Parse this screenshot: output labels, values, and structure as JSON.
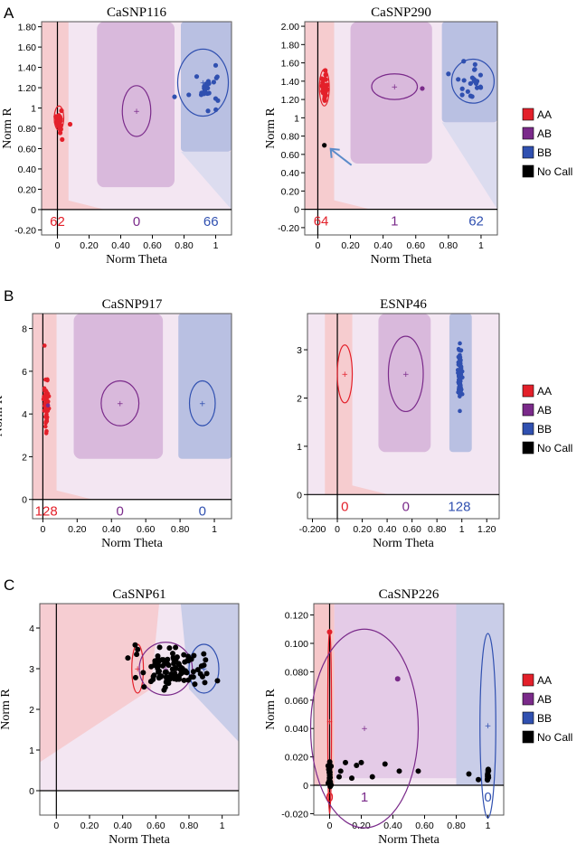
{
  "panel_letters": [
    "A",
    "B",
    "C"
  ],
  "colors": {
    "AA": "#e3202a",
    "AB": "#7a2a8a",
    "BB": "#3050b0",
    "NoCall": "#000000"
  },
  "legend": {
    "entries": [
      "AA",
      "AB",
      "BB",
      "No Call"
    ]
  },
  "chart_data": [
    {
      "type": "scatter",
      "title": "CaSNP116",
      "xlabel": "Norm Theta",
      "ylabel": "Norm R",
      "xlim": [
        -0.1,
        1.1
      ],
      "ylim": [
        -0.25,
        1.85
      ],
      "xticks": [
        0,
        0.2,
        0.4,
        0.6,
        0.8,
        1
      ],
      "xticklabels": [
        "0",
        "0.20",
        "0.40",
        "0.60",
        "0.80",
        "1"
      ],
      "yticks": [
        -0.2,
        0,
        0.2,
        0.4,
        0.6,
        0.8,
        1,
        1.2,
        1.4,
        1.6,
        1.8
      ],
      "yticklabels": [
        "-0.20",
        "0",
        "0.20",
        "0.40",
        "0.60",
        "0.80",
        "1",
        "1.20",
        "1.40",
        "1.60",
        "1.80"
      ],
      "counts": [
        {
          "label": "62",
          "x": 0.0,
          "cls": "AA"
        },
        {
          "label": "0",
          "x": 0.5,
          "cls": "AB"
        },
        {
          "label": "66",
          "x": 0.97,
          "cls": "BB"
        }
      ],
      "ellipses": [
        {
          "cls": "AA",
          "cx": 0.01,
          "cy": 0.9,
          "rx": 0.03,
          "ry": 0.12
        },
        {
          "cls": "AB",
          "cx": 0.5,
          "cy": 0.97,
          "rx": 0.09,
          "ry": 0.25
        },
        {
          "cls": "BB",
          "cx": 0.92,
          "cy": 1.25,
          "rx": 0.16,
          "ry": 0.33
        }
      ],
      "clusters": [
        {
          "cls": "AA",
          "cx": 0.01,
          "cy": 0.88,
          "sx": 0.008,
          "sy": 0.06,
          "n": 22
        },
        {
          "cls": "BB",
          "cx": 0.95,
          "cy": 1.2,
          "sx": 0.035,
          "sy": 0.08,
          "n": 22
        }
      ],
      "points": [
        {
          "cls": "AA",
          "x": 0.08,
          "y": 0.84
        },
        {
          "cls": "AA",
          "x": 0.03,
          "y": 0.69
        },
        {
          "cls": "BB",
          "x": 0.74,
          "y": 1.11
        },
        {
          "cls": "BB",
          "x": 0.83,
          "y": 1.13
        },
        {
          "cls": "BB",
          "x": 0.88,
          "y": 1.31
        },
        {
          "cls": "BB",
          "x": 1.0,
          "y": 1.42
        }
      ]
    },
    {
      "type": "scatter",
      "title": "CaSNP290",
      "xlabel": "Norm Theta",
      "ylabel": "Norm R",
      "xlim": [
        -0.08,
        1.1
      ],
      "ylim": [
        -0.28,
        2.05
      ],
      "xticks": [
        0,
        0.2,
        0.4,
        0.6,
        0.8,
        1
      ],
      "xticklabels": [
        "0",
        "0.20",
        "0.40",
        "0.60",
        "0.80",
        "1"
      ],
      "yticks": [
        -0.2,
        0,
        0.2,
        0.4,
        0.6,
        0.8,
        1,
        1.2,
        1.4,
        1.6,
        1.8,
        2
      ],
      "yticklabels": [
        "-0.20",
        "0",
        "0.20",
        "0.40",
        "0.60",
        "0.80",
        "1",
        "1.20",
        "1.40",
        "1.60",
        "1.80",
        "2.00"
      ],
      "counts": [
        {
          "label": "64",
          "x": 0.02,
          "cls": "AA"
        },
        {
          "label": "1",
          "x": 0.47,
          "cls": "AB"
        },
        {
          "label": "62",
          "x": 0.97,
          "cls": "BB"
        }
      ],
      "ellipses": [
        {
          "cls": "AA",
          "cx": 0.04,
          "cy": 1.33,
          "rx": 0.03,
          "ry": 0.2
        },
        {
          "cls": "AB",
          "cx": 0.47,
          "cy": 1.34,
          "rx": 0.14,
          "ry": 0.14
        },
        {
          "cls": "BB",
          "cx": 0.95,
          "cy": 1.4,
          "rx": 0.13,
          "ry": 0.24
        }
      ],
      "clusters": [
        {
          "cls": "AA",
          "cx": 0.04,
          "cy": 1.33,
          "sx": 0.01,
          "sy": 0.08,
          "n": 30
        },
        {
          "cls": "BB",
          "cx": 0.96,
          "cy": 1.42,
          "sx": 0.035,
          "sy": 0.09,
          "n": 20
        }
      ],
      "points": [
        {
          "cls": "AB",
          "x": 0.64,
          "y": 1.32
        },
        {
          "cls": "BB",
          "x": 0.8,
          "y": 1.48
        },
        {
          "cls": "BB",
          "x": 0.86,
          "y": 1.42
        },
        {
          "cls": "NoCall",
          "x": 0.04,
          "y": 0.7
        }
      ],
      "annotation": {
        "type": "arrow",
        "target": "No Call point"
      }
    },
    {
      "type": "scatter",
      "title": "CaSNP917",
      "xlabel": "Norm Theta",
      "ylabel": "Norm R",
      "xlim": [
        -0.06,
        1.1
      ],
      "ylim": [
        -0.9,
        8.7
      ],
      "xticks": [
        0,
        0.2,
        0.4,
        0.6,
        0.8,
        1
      ],
      "xticklabels": [
        "0",
        "0.20",
        "0.40",
        "0.60",
        "0.80",
        "1"
      ],
      "yticks": [
        0,
        2,
        4,
        6,
        8
      ],
      "yticklabels": [
        "0",
        "2",
        "4",
        "6",
        "8"
      ],
      "counts": [
        {
          "label": "128",
          "x": 0.02,
          "cls": "AA"
        },
        {
          "label": "0",
          "x": 0.45,
          "cls": "AB"
        },
        {
          "label": "0",
          "x": 0.93,
          "cls": "BB"
        }
      ],
      "ellipses": [
        {
          "cls": "AB",
          "cx": 0.45,
          "cy": 4.5,
          "rx": 0.11,
          "ry": 1.05
        },
        {
          "cls": "BB",
          "cx": 0.93,
          "cy": 4.5,
          "rx": 0.075,
          "ry": 1.05
        }
      ],
      "clusters": [
        {
          "cls": "AA",
          "cx": 0.02,
          "cy": 4.55,
          "sx": 0.007,
          "sy": 0.55,
          "n": 60
        }
      ],
      "points": [
        {
          "cls": "AA",
          "x": 0.01,
          "y": 7.2
        },
        {
          "cls": "AA",
          "x": 0.02,
          "y": 3.1
        },
        {
          "cls": "AB",
          "x": 0.03,
          "y": 4.4
        }
      ]
    },
    {
      "type": "scatter",
      "title": "ESNP46",
      "xlabel": "Norm Theta",
      "ylabel": "",
      "xlim": [
        -0.24,
        1.3
      ],
      "ylim": [
        -0.5,
        3.75
      ],
      "xticks": [
        -0.2,
        0,
        0.2,
        0.4,
        0.6,
        0.8,
        1,
        1.2
      ],
      "xticklabels": [
        "-0.200",
        "0",
        "0.20",
        "0.40",
        "0.60",
        "0.80",
        "1",
        "1.20"
      ],
      "yticks": [
        0,
        1,
        2,
        3
      ],
      "yticklabels": [
        "0",
        "1",
        "2",
        "3"
      ],
      "counts": [
        {
          "label": "0",
          "x": 0.06,
          "cls": "AA"
        },
        {
          "label": "0",
          "x": 0.55,
          "cls": "AB"
        },
        {
          "label": "128",
          "x": 0.98,
          "cls": "BB"
        }
      ],
      "ellipses": [
        {
          "cls": "AA",
          "cx": 0.06,
          "cy": 2.5,
          "rx": 0.06,
          "ry": 0.6
        },
        {
          "cls": "AB",
          "cx": 0.55,
          "cy": 2.5,
          "rx": 0.14,
          "ry": 0.78
        }
      ],
      "clusters": [
        {
          "cls": "BB",
          "cx": 0.985,
          "cy": 2.5,
          "sx": 0.008,
          "sy": 0.3,
          "n": 70
        }
      ],
      "points": []
    },
    {
      "type": "scatter",
      "title": "CaSNP61",
      "xlabel": "Norm Theta",
      "ylabel": "Norm R",
      "xlim": [
        -0.1,
        1.1
      ],
      "ylim": [
        -0.6,
        4.6
      ],
      "xticks": [
        0,
        0.2,
        0.4,
        0.6,
        0.8,
        1
      ],
      "xticklabels": [
        "0",
        "0.20",
        "0.40",
        "0.60",
        "0.80",
        "1"
      ],
      "yticks": [
        0,
        1,
        2,
        3,
        4
      ],
      "yticklabels": [
        "0",
        "1",
        "2",
        "3",
        "4"
      ],
      "counts": [],
      "ellipses": [
        {
          "cls": "AA",
          "cx": 0.49,
          "cy": 3.0,
          "rx": 0.035,
          "ry": 0.6
        },
        {
          "cls": "AB",
          "cx": 0.66,
          "cy": 3.0,
          "rx": 0.16,
          "ry": 0.65
        },
        {
          "cls": "BB",
          "cx": 0.89,
          "cy": 3.0,
          "rx": 0.09,
          "ry": 0.6
        }
      ],
      "clusters": [
        {
          "cls": "NoCall",
          "cx": 0.7,
          "cy": 3.0,
          "sx": 0.1,
          "sy": 0.25,
          "n": 110
        }
      ],
      "points": []
    },
    {
      "type": "scatter",
      "title": "CaSNP226",
      "xlabel": "Norm Theta",
      "ylabel": "Norm R",
      "xlim": [
        -0.1,
        1.1
      ],
      "ylim": [
        -0.021,
        0.128
      ],
      "xticks": [
        0,
        0.2,
        0.4,
        0.6,
        0.8,
        1
      ],
      "xticklabels": [
        "0",
        "0.20",
        "0.40",
        "0.60",
        "0.80",
        "1"
      ],
      "yticks": [
        -0.02,
        0,
        0.02,
        0.04,
        0.06,
        0.08,
        0.1,
        0.12
      ],
      "yticklabels": [
        "-0.020",
        "0",
        "0.020",
        "0.040",
        "0.060",
        "0.080",
        "0.100",
        "0.120"
      ],
      "counts": [
        {
          "label": "0",
          "x": 0.0,
          "cls": "AA"
        },
        {
          "label": "1",
          "x": 0.22,
          "cls": "AB"
        },
        {
          "label": "0",
          "x": 1.0,
          "cls": "BB"
        }
      ],
      "ellipses": [
        {
          "cls": "AA",
          "cx": 0.0,
          "cy": 0.045,
          "rx": 0.012,
          "ry": 0.065
        },
        {
          "cls": "AB",
          "cx": 0.22,
          "cy": 0.04,
          "rx": 0.34,
          "ry": 0.07
        },
        {
          "cls": "BB",
          "cx": 1.0,
          "cy": 0.042,
          "rx": 0.05,
          "ry": 0.065
        }
      ],
      "clusters": [
        {
          "cls": "NoCall",
          "cx": 0.0,
          "cy": 0.008,
          "sx": 0.004,
          "sy": 0.005,
          "n": 25
        },
        {
          "cls": "NoCall",
          "cx": 1.0,
          "cy": 0.007,
          "sx": 0.003,
          "sy": 0.004,
          "n": 12
        }
      ],
      "points": [
        {
          "cls": "AA",
          "x": 0.0,
          "y": 0.108
        },
        {
          "cls": "AB",
          "x": 0.43,
          "y": 0.075
        },
        {
          "cls": "NoCall",
          "x": 0.06,
          "y": 0.006
        },
        {
          "cls": "NoCall",
          "x": 0.1,
          "y": 0.016
        },
        {
          "cls": "NoCall",
          "x": 0.14,
          "y": 0.005
        },
        {
          "cls": "NoCall",
          "x": 0.17,
          "y": 0.014
        },
        {
          "cls": "NoCall",
          "x": 0.2,
          "y": 0.016
        },
        {
          "cls": "NoCall",
          "x": 0.27,
          "y": 0.006
        },
        {
          "cls": "NoCall",
          "x": 0.35,
          "y": 0.015
        },
        {
          "cls": "NoCall",
          "x": 0.44,
          "y": 0.01
        },
        {
          "cls": "NoCall",
          "x": 0.56,
          "y": 0.01
        },
        {
          "cls": "NoCall",
          "x": 0.88,
          "y": 0.008
        },
        {
          "cls": "NoCall",
          "x": 0.94,
          "y": 0.004
        },
        {
          "cls": "NoCall",
          "x": 0.07,
          "y": 0.01
        }
      ]
    }
  ]
}
